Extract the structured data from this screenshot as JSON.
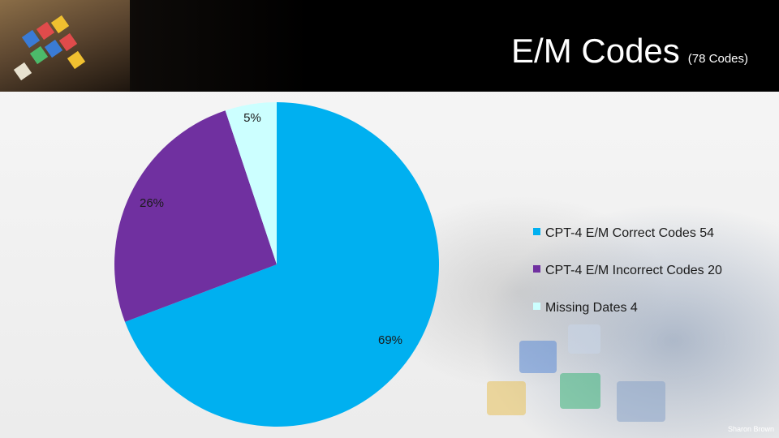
{
  "slide": {
    "title": "E/M Codes",
    "subtitle": "(78 Codes)",
    "author": "Sharon Brown"
  },
  "chart_data": {
    "type": "pie",
    "categories": [
      "CPT-4 E/M Correct Codes",
      "CPT-4 E/M Incorrect Codes",
      "Missing Dates"
    ],
    "values": [
      54,
      20,
      4
    ],
    "data_labels": [
      "69%",
      "26%",
      "5%"
    ],
    "legend_labels": [
      "CPT-4 E/M Correct Codes 54",
      "CPT-4 E/M Incorrect Codes 20",
      "Missing Dates 4"
    ],
    "colors": [
      "#00B0F0",
      "#7030A0",
      "#CCFFFF"
    ],
    "start_angle_deg": 0,
    "direction": "clockwise",
    "legend_position": "right"
  }
}
